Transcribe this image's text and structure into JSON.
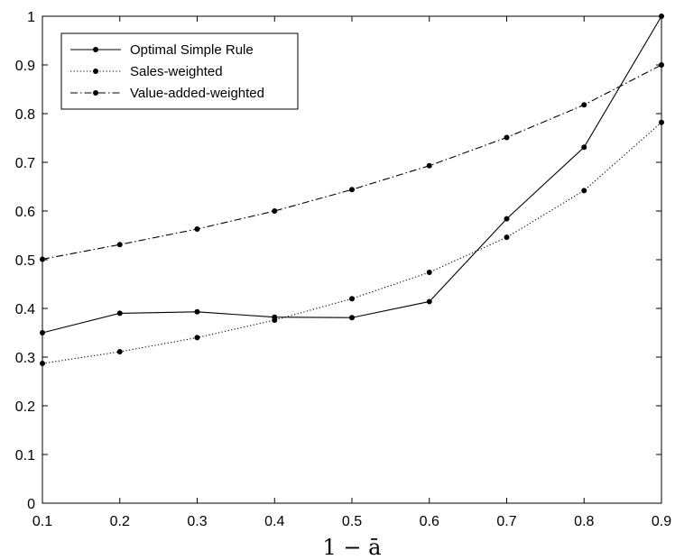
{
  "chart_data": {
    "type": "line",
    "title": "",
    "xlabel": "1 − ā",
    "ylabel": "",
    "xlim": [
      0.1,
      0.9
    ],
    "ylim": [
      0,
      1
    ],
    "grid": false,
    "legend_position": "top-left",
    "x": [
      0.1,
      0.2,
      0.3,
      0.4,
      0.5,
      0.6,
      0.7,
      0.8,
      0.9
    ],
    "x_ticks": [
      "0.1",
      "0.2",
      "0.3",
      "0.4",
      "0.5",
      "0.6",
      "0.7",
      "0.8",
      "0.9"
    ],
    "y_ticks": [
      "0",
      "0.1",
      "0.2",
      "0.3",
      "0.4",
      "0.5",
      "0.6",
      "0.7",
      "0.8",
      "0.9",
      "1"
    ],
    "series": [
      {
        "name": "Optimal Simple Rule",
        "style": "solid",
        "color": "#000000",
        "values": [
          0.35,
          0.39,
          0.393,
          0.382,
          0.381,
          0.414,
          0.584,
          0.731,
          1.0
        ]
      },
      {
        "name": "Sales-weighted",
        "style": "dotted",
        "color": "#000000",
        "values": [
          0.287,
          0.311,
          0.34,
          0.376,
          0.42,
          0.474,
          0.546,
          0.642,
          0.782
        ]
      },
      {
        "name": "Value-added-weighted",
        "style": "dashdot",
        "color": "#000000",
        "values": [
          0.501,
          0.531,
          0.563,
          0.6,
          0.644,
          0.693,
          0.751,
          0.818,
          0.9
        ]
      }
    ]
  }
}
